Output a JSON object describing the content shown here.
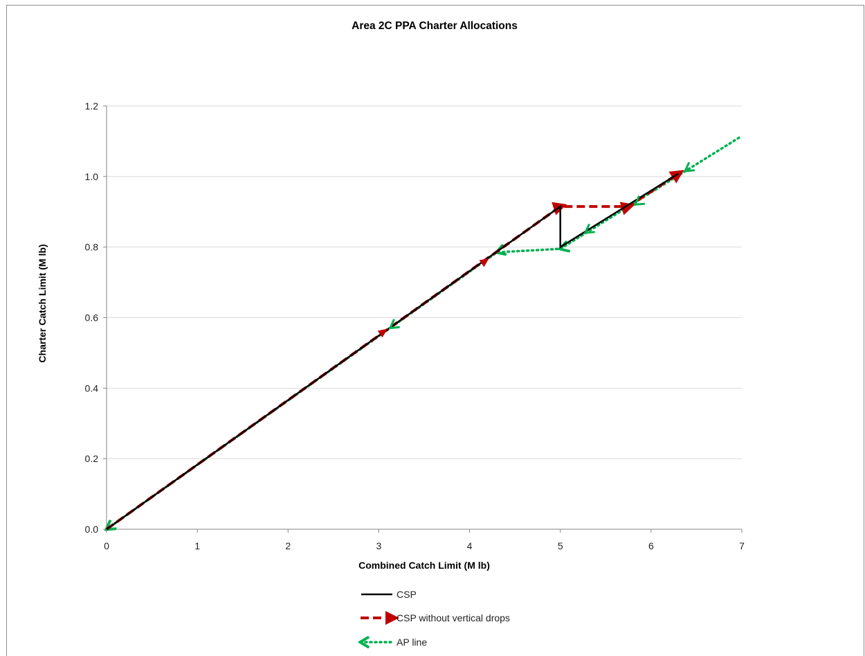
{
  "chart_data": {
    "type": "line",
    "title": "Area 2C PPA Charter Allocations",
    "xlabel": "Combined Catch Limit (M lb)",
    "ylabel": "Charter Catch Limit (M lb)",
    "xlim": [
      0,
      7
    ],
    "ylim": [
      0,
      1.2
    ],
    "x_ticks": [
      "0",
      "1",
      "2",
      "3",
      "4",
      "5",
      "6",
      "7"
    ],
    "y_ticks": [
      "0.0",
      "0.2",
      "0.4",
      "0.6",
      "0.8",
      "1.0",
      "1.2"
    ],
    "grid": "horizontal",
    "legend_position": "bottom",
    "colors": {
      "csp": "#000000",
      "csp_no_drops": "#c00000",
      "ap_line": "#00b050"
    },
    "series": [
      {
        "name": "CSP",
        "style": "solid",
        "x": [
          0,
          5.0,
          5.0,
          6.3
        ],
        "y": [
          0,
          0.915,
          0.8,
          1.008
        ]
      },
      {
        "name": "CSP without vertical drops",
        "style": "dashed",
        "marker": "arrow-right",
        "x": [
          0,
          5.0,
          5.75,
          6.3
        ],
        "y": [
          0,
          0.915,
          0.915,
          1.008
        ]
      },
      {
        "name": "AP line",
        "style": "dotted",
        "marker": "arrow-left",
        "x": [
          0,
          4.3,
          5.0,
          7.0
        ],
        "y": [
          0,
          0.785,
          0.795,
          1.115
        ]
      }
    ]
  }
}
